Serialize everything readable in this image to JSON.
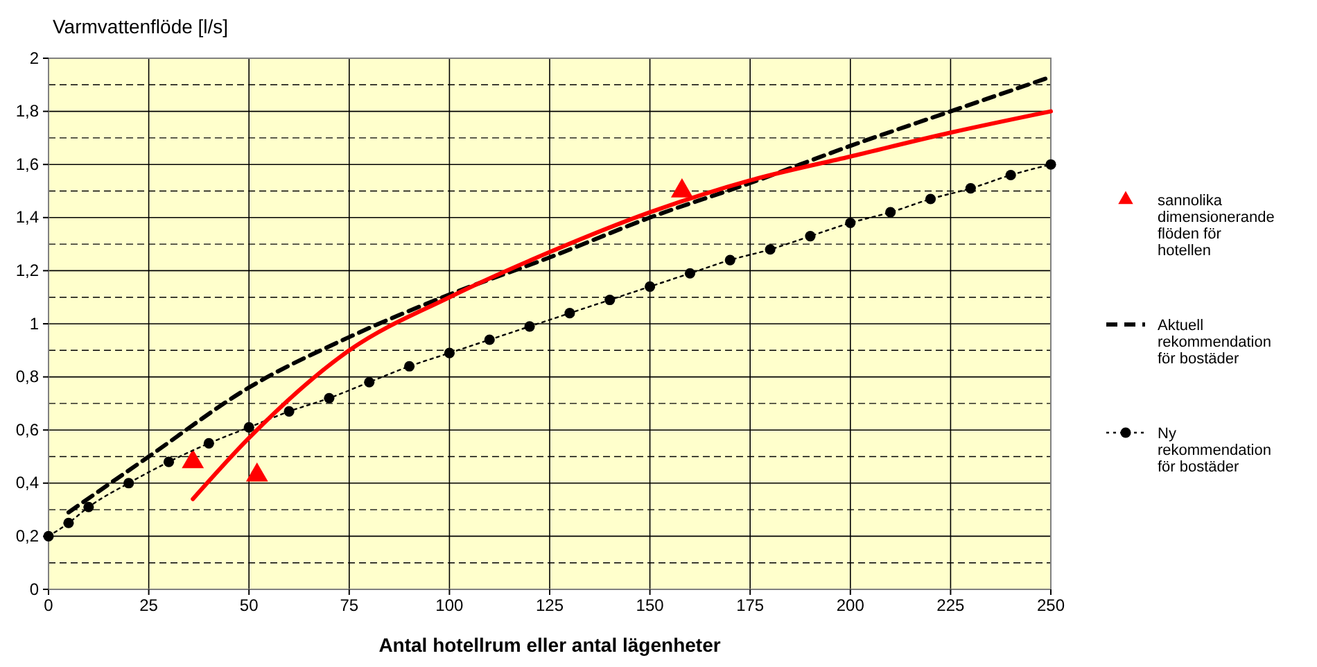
{
  "chart_data": {
    "type": "line",
    "ylabel": "Varmvattenflöde [l/s]",
    "xlabel": "Antal hotellrum eller antal lägenheter",
    "xlim": [
      0,
      250
    ],
    "xticks": [
      0,
      25,
      50,
      75,
      100,
      125,
      150,
      175,
      200,
      225,
      250
    ],
    "ylim": [
      0,
      2
    ],
    "yticks": [
      0,
      {
        "value": 0.2,
        "label": "0,2"
      },
      {
        "value": 0.4,
        "label": "0,4"
      },
      {
        "value": 0.6,
        "label": "0,6"
      },
      {
        "value": 0.8,
        "label": "0,8"
      },
      1,
      {
        "value": 1.2,
        "label": "1,2"
      },
      {
        "value": 1.4,
        "label": "1,4"
      },
      {
        "value": 1.6,
        "label": "1,6"
      },
      {
        "value": 1.8,
        "label": "1,8"
      },
      2
    ],
    "grid": true,
    "legend": "right",
    "series": [
      {
        "type": "scatter",
        "name": "sannolika dimensionerande flöden för hotellen",
        "color": "#ff0000",
        "marker": "triangle",
        "x": [
          36,
          52,
          158
        ],
        "values": [
          0.48,
          0.43,
          1.5
        ]
      },
      {
        "name": "Aktuell rekommendation för bostäder",
        "color": "#000000",
        "line_style": "dashed",
        "marker": "none",
        "x": [
          5,
          25,
          50,
          75,
          100,
          125,
          150,
          175,
          200,
          225,
          250
        ],
        "values": [
          0.29,
          0.5,
          0.76,
          0.95,
          1.11,
          1.25,
          1.4,
          1.53,
          1.67,
          1.8,
          1.93
        ]
      },
      {
        "name": "Ny rekommendation för bostäder",
        "color": "#000000",
        "line_style": "dotted",
        "marker": "circle",
        "x": [
          0,
          5,
          10,
          20,
          30,
          40,
          50,
          60,
          70,
          80,
          90,
          100,
          110,
          120,
          130,
          140,
          150,
          160,
          170,
          180,
          190,
          200,
          210,
          220,
          230,
          240,
          250
        ],
        "values": [
          0.2,
          0.25,
          0.31,
          0.4,
          0.48,
          0.55,
          0.61,
          0.67,
          0.72,
          0.78,
          0.84,
          0.89,
          0.94,
          0.99,
          1.04,
          1.09,
          1.14,
          1.19,
          1.24,
          1.28,
          1.33,
          1.38,
          1.42,
          1.47,
          1.51,
          1.56,
          1.6
        ]
      },
      {
        "color": "#ff0000",
        "line_style": "solid",
        "marker": "none",
        "x": [
          36,
          50,
          75,
          100,
          125,
          150,
          175,
          200,
          225,
          250
        ],
        "values": [
          0.34,
          0.57,
          0.9,
          1.1,
          1.27,
          1.42,
          1.54,
          1.63,
          1.72,
          1.8
        ]
      }
    ]
  }
}
